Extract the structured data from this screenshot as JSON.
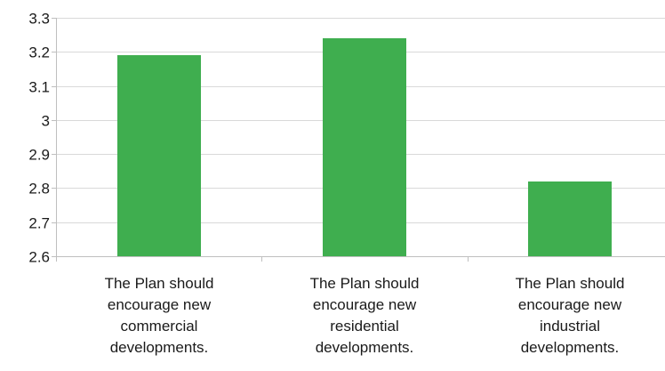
{
  "chart_data": {
    "type": "bar",
    "title": "",
    "xlabel": "",
    "ylabel": "",
    "ylim": [
      2.6,
      3.3
    ],
    "yticks": [
      2.6,
      2.7,
      2.8,
      2.9,
      3,
      3.1,
      3.2,
      3.3
    ],
    "ytick_labels": [
      "2.6",
      "2.7",
      "2.8",
      "2.9",
      "3",
      "3.1",
      "3.2",
      "3.3"
    ],
    "categories": [
      "The Plan should encourage new commercial developments.",
      "The Plan should encourage new residential developments.",
      "The Plan should encourage new industrial developments."
    ],
    "category_label_lines": [
      [
        "The Plan should",
        "encourage new",
        "commercial",
        "developments."
      ],
      [
        "The Plan should",
        "encourage new",
        "residential",
        "developments."
      ],
      [
        "The Plan should",
        "encourage new",
        "industrial",
        "developments."
      ]
    ],
    "values": [
      3.19,
      3.24,
      2.82
    ],
    "grid": true,
    "legend": "none",
    "colors": {
      "bar": "#3fae4f",
      "grid": "#d9d9d9",
      "axis": "#bfbfbf",
      "text": "#1a1a1a"
    }
  }
}
